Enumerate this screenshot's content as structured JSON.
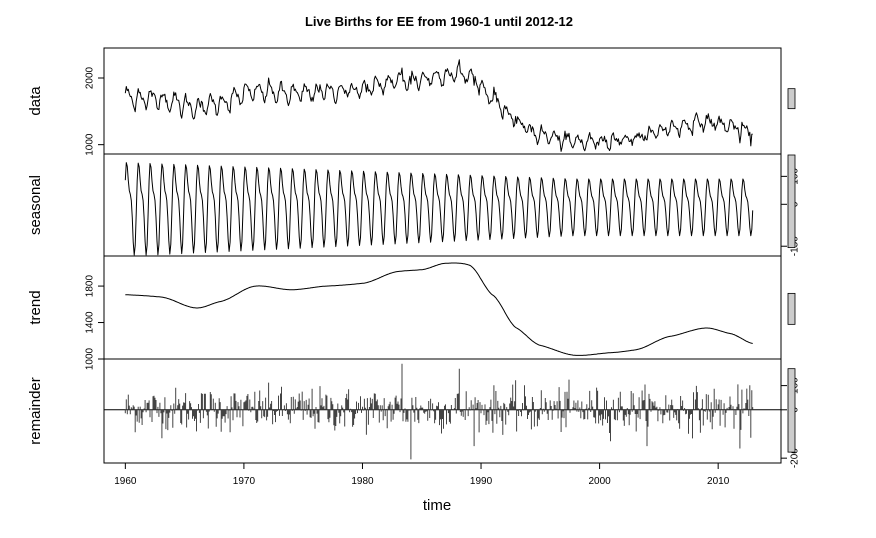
{
  "chart_data": {
    "type": "line",
    "title": "Live Births for EE from 1960-1 until 2012-12",
    "xlabel": "time",
    "xlim": [
      1958.2,
      2015.3
    ],
    "x_ticks": [
      1960,
      1970,
      1980,
      1990,
      2000,
      2010
    ],
    "x_tick_labels": [
      "1960",
      "1970",
      "1980",
      "1990",
      "2000",
      "2010"
    ],
    "panels": [
      {
        "name": "data",
        "ylabel": "data",
        "ylim": [
          860,
          2450
        ],
        "y_ticks": [
          1000,
          2000
        ],
        "y_tick_labels": [
          "1000",
          "2000"
        ],
        "axis_side": "left",
        "range_bar": [
          1540,
          1840
        ],
        "trend_knots": [
          [
            1960,
            1705
          ],
          [
            1963,
            1680
          ],
          [
            1966,
            1560
          ],
          [
            1968,
            1630
          ],
          [
            1971,
            1800
          ],
          [
            1974,
            1760
          ],
          [
            1977,
            1800
          ],
          [
            1980,
            1830
          ],
          [
            1983,
            1960
          ],
          [
            1985,
            1980
          ],
          [
            1987,
            2050
          ],
          [
            1989,
            2030
          ],
          [
            1991,
            1700
          ],
          [
            1993,
            1340
          ],
          [
            1995,
            1150
          ],
          [
            1998,
            1040
          ],
          [
            2001,
            1070
          ],
          [
            2003,
            1100
          ],
          [
            2006,
            1250
          ],
          [
            2009,
            1340
          ],
          [
            2011,
            1280
          ],
          [
            2012.9,
            1170
          ]
        ],
        "seasonal_amp_early": 120,
        "seasonal_amp_late": 95,
        "noise": 55
      },
      {
        "name": "seasonal",
        "ylabel": "seasonal",
        "ylim": [
          -185,
          180
        ],
        "y_ticks": [
          -150,
          0,
          100
        ],
        "y_tick_labels": [
          "-150",
          "0",
          "100"
        ],
        "axis_side": "right",
        "range_bar": [
          -155,
          185
        ],
        "amp_early": 165,
        "amp_late": 100
      },
      {
        "name": "trend",
        "ylabel": "trend",
        "ylim": [
          1000,
          2130
        ],
        "y_ticks": [
          1000,
          1400,
          1800
        ],
        "y_tick_labels": [
          "1000",
          "1400",
          "1800"
        ],
        "axis_side": "left",
        "range_bar": [
          1380,
          1720
        ],
        "knots": [
          [
            1960,
            1705
          ],
          [
            1963,
            1680
          ],
          [
            1966,
            1560
          ],
          [
            1968,
            1630
          ],
          [
            1971,
            1800
          ],
          [
            1974,
            1760
          ],
          [
            1977,
            1800
          ],
          [
            1980,
            1830
          ],
          [
            1983,
            1960
          ],
          [
            1985,
            1980
          ],
          [
            1987,
            2050
          ],
          [
            1989,
            2030
          ],
          [
            1991,
            1700
          ],
          [
            1993,
            1340
          ],
          [
            1995,
            1150
          ],
          [
            1998,
            1040
          ],
          [
            2001,
            1070
          ],
          [
            2003,
            1100
          ],
          [
            2006,
            1250
          ],
          [
            2009,
            1340
          ],
          [
            2011,
            1280
          ],
          [
            2012.9,
            1170
          ]
        ]
      },
      {
        "name": "remainder",
        "ylabel": "remainder",
        "ylim": [
          -220,
          210
        ],
        "y_ticks": [
          -200,
          0,
          100
        ],
        "y_tick_labels": [
          "-200",
          "0",
          "100"
        ],
        "axis_side": "right",
        "range_bar": [
          -175,
          170
        ],
        "typical_spread": 45,
        "extremes": [
          [
            1983.3,
            190
          ],
          [
            1984.1,
            -205
          ],
          [
            1988.2,
            170
          ],
          [
            2011.8,
            -160
          ]
        ]
      }
    ],
    "start": 1960,
    "end": 2012.95,
    "frequency": 12
  }
}
